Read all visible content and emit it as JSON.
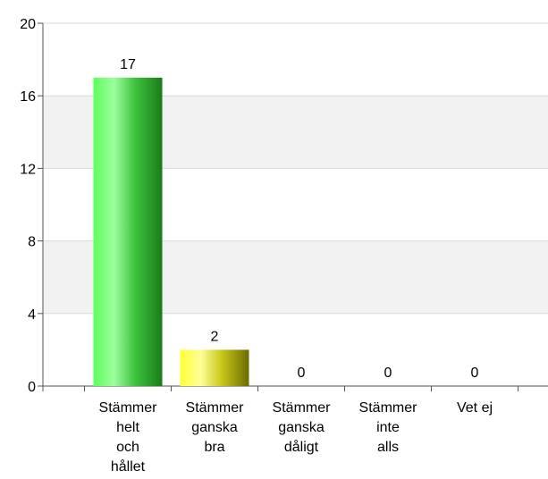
{
  "chart_data": {
    "type": "bar",
    "categories": [
      [
        "Stämmer",
        "helt",
        "och",
        "hållet"
      ],
      [
        "Stämmer",
        "ganska",
        "bra"
      ],
      [
        "Stämmer",
        "ganska",
        "dåligt"
      ],
      [
        "Stämmer",
        "inte",
        "alls"
      ],
      [
        "Vet ej"
      ]
    ],
    "values": [
      17,
      2,
      0,
      0,
      0
    ],
    "data_labels": [
      "17",
      "2",
      "0",
      "0",
      "0"
    ],
    "ylim": [
      0,
      20
    ],
    "yticks": [
      0,
      4,
      8,
      12,
      16,
      20
    ],
    "ytick_labels": [
      "0",
      "4",
      "8",
      "12",
      "16",
      "20"
    ],
    "grid": "horizontal bands",
    "colors": {
      "bar_1_light": "#66ff66",
      "bar_1_dark": "#1a7a1a",
      "bar_2_light": "#ffff33",
      "bar_2_dark": "#6b6b00",
      "band": "#f2f2f2",
      "axis": "#555555"
    }
  }
}
